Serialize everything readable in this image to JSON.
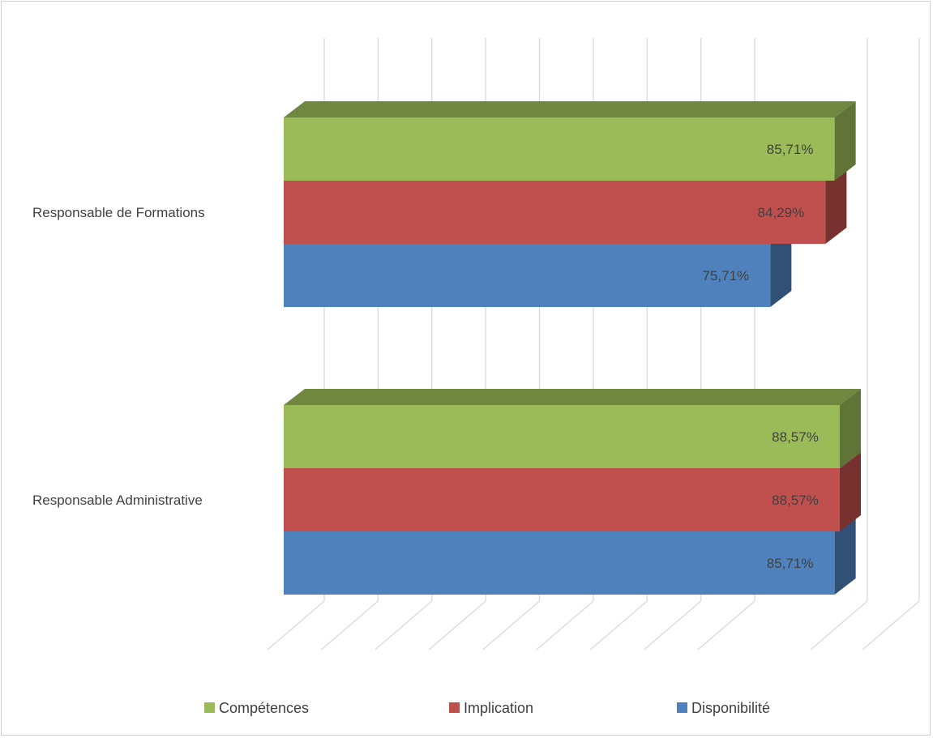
{
  "chart_data": {
    "type": "bar",
    "orientation": "horizontal",
    "style": "3d",
    "categories": [
      "Responsable de Formations",
      "Responsable Administrative"
    ],
    "series": [
      {
        "name": "Compétences",
        "color": "#9BBB59",
        "values": [
          85.71,
          88.57
        ],
        "labels": [
          "85,71%",
          "88,57%"
        ]
      },
      {
        "name": "Implication",
        "color": "#C0504D",
        "values": [
          84.29,
          88.57
        ],
        "labels": [
          "84,29%",
          "88,57%"
        ]
      },
      {
        "name": "Disponibilité",
        "color": "#4F81BD",
        "values": [
          75.71,
          85.71
        ],
        "labels": [
          "75,71%",
          "85,71%"
        ]
      }
    ],
    "xlim": [
      0,
      100
    ],
    "grid": true,
    "legend": "bottom",
    "title": "",
    "xlabel": "",
    "ylabel": ""
  }
}
